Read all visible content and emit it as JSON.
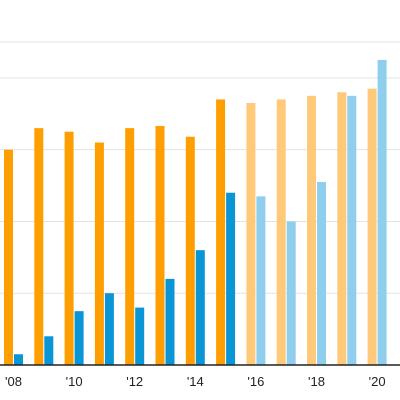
{
  "chart_data": {
    "type": "bar",
    "categories": [
      "2008",
      "2009",
      "2010",
      "2011",
      "2012",
      "2013",
      "2014",
      "2015",
      "2016",
      "2017",
      "2018",
      "2019",
      "2020"
    ],
    "series": [
      {
        "color": "#FF9E00",
        "projected_color": "#FFC97A",
        "values": [
          30,
          33,
          32.5,
          31,
          33,
          33.3,
          31.8,
          37,
          36.5,
          37,
          37.5,
          38,
          38.5
        ]
      },
      {
        "color": "#0A96D6",
        "projected_color": "#90CEEE",
        "values": [
          1.5,
          4,
          7.5,
          10,
          8,
          12,
          16,
          24,
          23.5,
          20,
          25.5,
          37.5,
          42.5
        ]
      }
    ],
    "projected_from_index": 8,
    "x_tick_labels": [
      {
        "index": 0,
        "label": "'08"
      },
      {
        "index": 2,
        "label": "'10"
      },
      {
        "index": 4,
        "label": "'12"
      },
      {
        "index": 6,
        "label": "'14"
      },
      {
        "index": 8,
        "label": "'16"
      },
      {
        "index": 10,
        "label": "'18"
      },
      {
        "index": 12,
        "label": "'20"
      }
    ],
    "ylim": [
      0,
      45
    ],
    "grid": true,
    "title": "",
    "xlabel": "",
    "ylabel": ""
  }
}
